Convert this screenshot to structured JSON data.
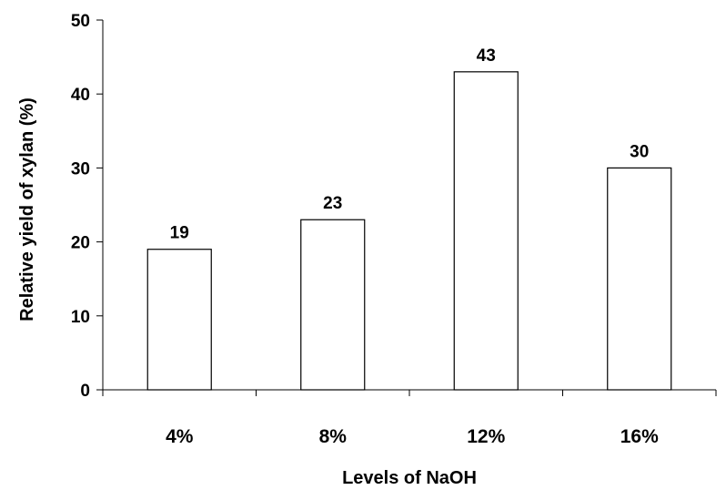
{
  "chart_data": {
    "type": "bar",
    "title": "",
    "xlabel": "Levels of NaOH",
    "ylabel": "Relative yield of xylan (%)",
    "categories": [
      "4%",
      "8%",
      "12%",
      "16%"
    ],
    "values": [
      19,
      23,
      43,
      30
    ],
    "data_labels": [
      "19",
      "23",
      "43",
      "30"
    ],
    "ylim": [
      0,
      50
    ],
    "yticks": [
      0,
      10,
      20,
      30,
      40,
      50
    ],
    "ytick_labels": [
      "0",
      "10",
      "20",
      "30",
      "40",
      "50"
    ],
    "grid": false,
    "legend": "none",
    "colors": {
      "bar_fill": "#ffffff",
      "bar_stroke": "#000000",
      "axis": "#000000"
    }
  }
}
